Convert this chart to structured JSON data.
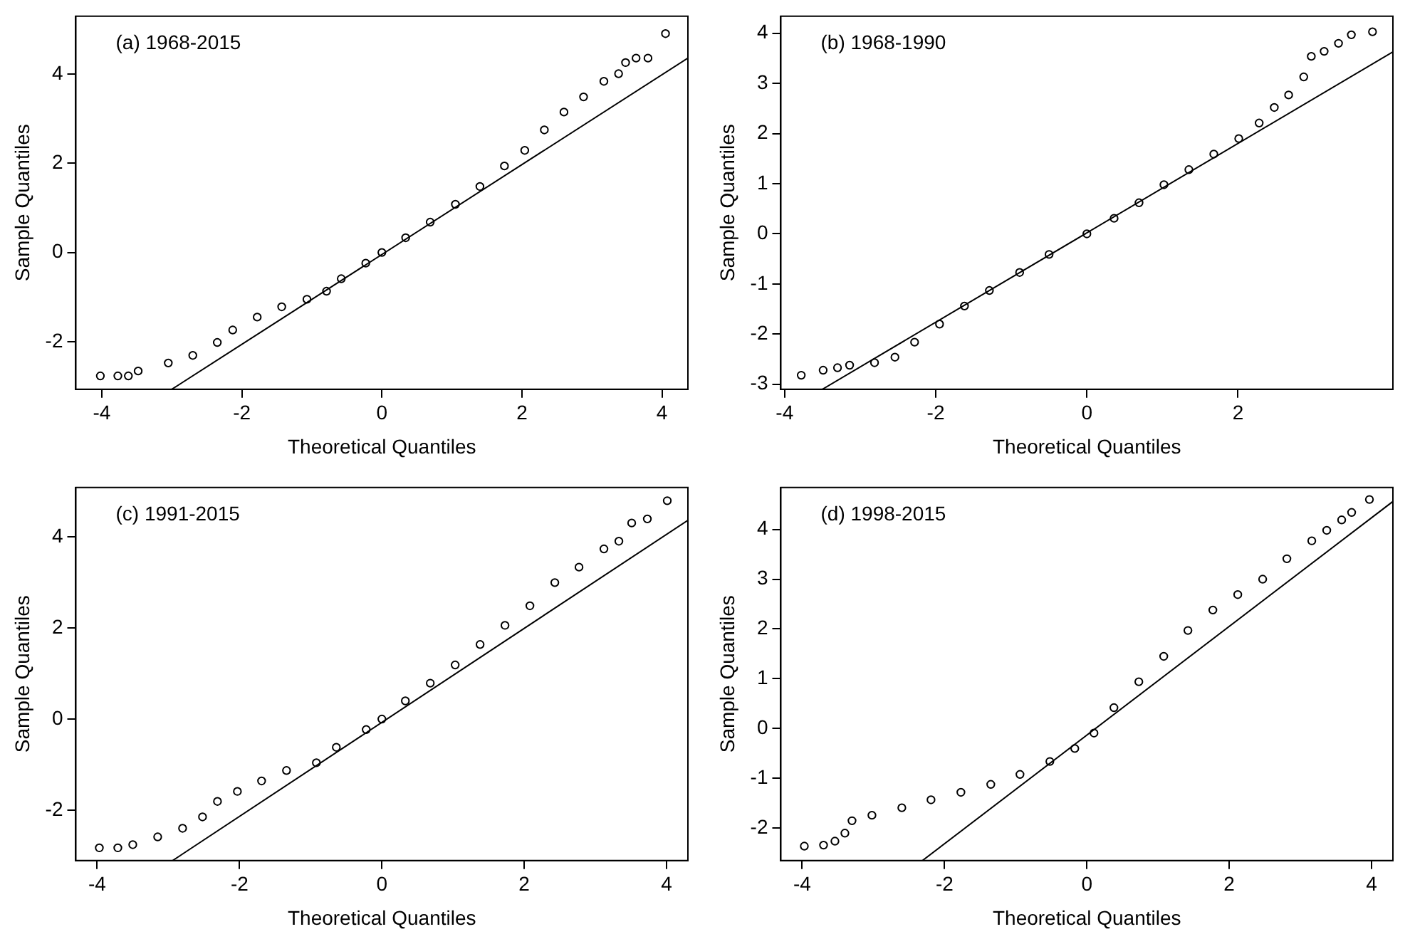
{
  "chart_data": [
    {
      "type": "scatter",
      "xlabel": "Theoretical Quantiles",
      "ylabel": "Sample Quantiles",
      "annotations": [
        "(a) 1968-2015"
      ],
      "xlim": [
        -4.37,
        4.37
      ],
      "ylim": [
        -3.07,
        5.3
      ],
      "xticks": [
        -4,
        -2,
        0,
        2,
        4
      ],
      "yticks": [
        -2,
        0,
        2,
        4
      ],
      "grid": false,
      "marker": "circle",
      "series": [
        {
          "color": "#000000",
          "x": [
            -4.02,
            -3.77,
            -3.62,
            -3.48,
            -3.05,
            -2.7,
            -2.35,
            -2.13,
            -1.78,
            -1.43,
            -1.07,
            -0.79,
            -0.58,
            -0.23,
            0,
            0.34,
            0.69,
            1.05,
            1.4,
            1.75,
            2.04,
            2.32,
            2.6,
            2.88,
            3.17,
            3.38,
            3.48,
            3.63,
            3.8,
            4.05
          ],
          "values": [
            -2.77,
            -2.77,
            -2.77,
            -2.66,
            -2.48,
            -2.31,
            -2.02,
            -1.74,
            -1.45,
            -1.22,
            -1.05,
            -0.87,
            -0.59,
            -0.24,
            0,
            0.33,
            0.68,
            1.08,
            1.48,
            1.94,
            2.29,
            2.75,
            3.15,
            3.49,
            3.84,
            4.01,
            4.26,
            4.36,
            4.36,
            4.91
          ]
        },
        {
          "type": "line",
          "marker": "none",
          "color": "#000000",
          "x": [
            -3.0,
            4.37
          ],
          "values": [
            -3.07,
            4.36
          ]
        }
      ]
    },
    {
      "type": "scatter",
      "xlabel": "Theoretical Quantiles",
      "ylabel": "Sample Quantiles",
      "annotations": [
        "(b) 1968-1990"
      ],
      "xlim": [
        -4.05,
        4.05
      ],
      "ylim": [
        -3.1,
        4.34
      ],
      "xticks": [
        -4,
        -2,
        0,
        2
      ],
      "yticks": [
        -3,
        -2,
        -1,
        0,
        1,
        2,
        3,
        4
      ],
      "grid": false,
      "marker": "circle",
      "series": [
        {
          "color": "#000000",
          "x": [
            -3.78,
            -3.49,
            -3.3,
            -3.14,
            -2.81,
            -2.54,
            -2.28,
            -1.95,
            -1.62,
            -1.29,
            -0.89,
            -0.5,
            0,
            0.36,
            0.69,
            1.02,
            1.35,
            1.68,
            2.01,
            2.28,
            2.48,
            2.67,
            2.87,
            2.97,
            3.14,
            3.33,
            3.5,
            3.78
          ],
          "values": [
            -2.82,
            -2.72,
            -2.67,
            -2.62,
            -2.57,
            -2.46,
            -2.16,
            -1.8,
            -1.44,
            -1.13,
            -0.77,
            -0.41,
            0,
            0.31,
            0.62,
            0.98,
            1.28,
            1.59,
            1.9,
            2.21,
            2.52,
            2.77,
            3.13,
            3.54,
            3.64,
            3.8,
            3.97,
            4.03
          ]
        },
        {
          "type": "line",
          "marker": "none",
          "color": "#000000",
          "x": [
            -3.5,
            4.05
          ],
          "values": [
            -3.1,
            3.63
          ]
        }
      ]
    },
    {
      "type": "scatter",
      "xlabel": "Theoretical Quantiles",
      "ylabel": "Sample Quantiles",
      "annotations": [
        "(c) 1991-2015"
      ],
      "xlim": [
        -4.3,
        4.3
      ],
      "ylim": [
        -3.11,
        5.09
      ],
      "xticks": [
        -4,
        -2,
        0,
        2,
        4
      ],
      "yticks": [
        -2,
        0,
        2,
        4
      ],
      "grid": false,
      "marker": "circle",
      "series": [
        {
          "color": "#000000",
          "x": [
            -3.97,
            -3.71,
            -3.5,
            -3.15,
            -2.8,
            -2.52,
            -2.31,
            -2.03,
            -1.69,
            -1.34,
            -0.92,
            -0.64,
            -0.22,
            0,
            0.33,
            0.68,
            1.03,
            1.38,
            1.73,
            2.08,
            2.43,
            2.77,
            3.12,
            3.33,
            3.51,
            3.73,
            4.01
          ],
          "values": [
            -2.83,
            -2.83,
            -2.76,
            -2.59,
            -2.4,
            -2.15,
            -1.81,
            -1.59,
            -1.36,
            -1.13,
            -0.96,
            -0.62,
            -0.23,
            0,
            0.4,
            0.79,
            1.19,
            1.64,
            2.06,
            2.49,
            3.0,
            3.34,
            3.74,
            3.91,
            4.31,
            4.4,
            4.8
          ]
        },
        {
          "type": "line",
          "marker": "none",
          "color": "#000000",
          "x": [
            -2.94,
            4.3
          ],
          "values": [
            -3.11,
            4.37
          ]
        }
      ]
    },
    {
      "type": "scatter",
      "xlabel": "Theoretical Quantiles",
      "ylabel": "Sample Quantiles",
      "annotations": [
        "(d) 1998-2015"
      ],
      "xlim": [
        -4.3,
        4.3
      ],
      "ylim": [
        -2.65,
        4.84
      ],
      "xticks": [
        -4,
        -2,
        0,
        2,
        4
      ],
      "yticks": [
        -2,
        -1,
        0,
        1,
        2,
        3,
        4
      ],
      "grid": false,
      "marker": "circle",
      "series": [
        {
          "color": "#000000",
          "x": [
            -3.97,
            -3.7,
            -3.54,
            -3.4,
            -3.3,
            -3.02,
            -2.6,
            -2.19,
            -1.77,
            -1.35,
            -0.94,
            -0.52,
            -0.17,
            0.1,
            0.38,
            0.73,
            1.08,
            1.42,
            1.77,
            2.12,
            2.47,
            2.81,
            3.16,
            3.37,
            3.58,
            3.72,
            3.97
          ],
          "values": [
            -2.36,
            -2.34,
            -2.26,
            -2.1,
            -1.85,
            -1.74,
            -1.59,
            -1.43,
            -1.28,
            -1.12,
            -0.92,
            -0.66,
            -0.4,
            -0.09,
            0.42,
            0.94,
            1.45,
            1.97,
            2.38,
            2.69,
            3.0,
            3.41,
            3.77,
            3.98,
            4.19,
            4.34,
            4.6
          ]
        },
        {
          "type": "line",
          "marker": "none",
          "color": "#000000",
          "x": [
            -2.31,
            4.3
          ],
          "values": [
            -2.65,
            4.56
          ]
        }
      ]
    }
  ]
}
